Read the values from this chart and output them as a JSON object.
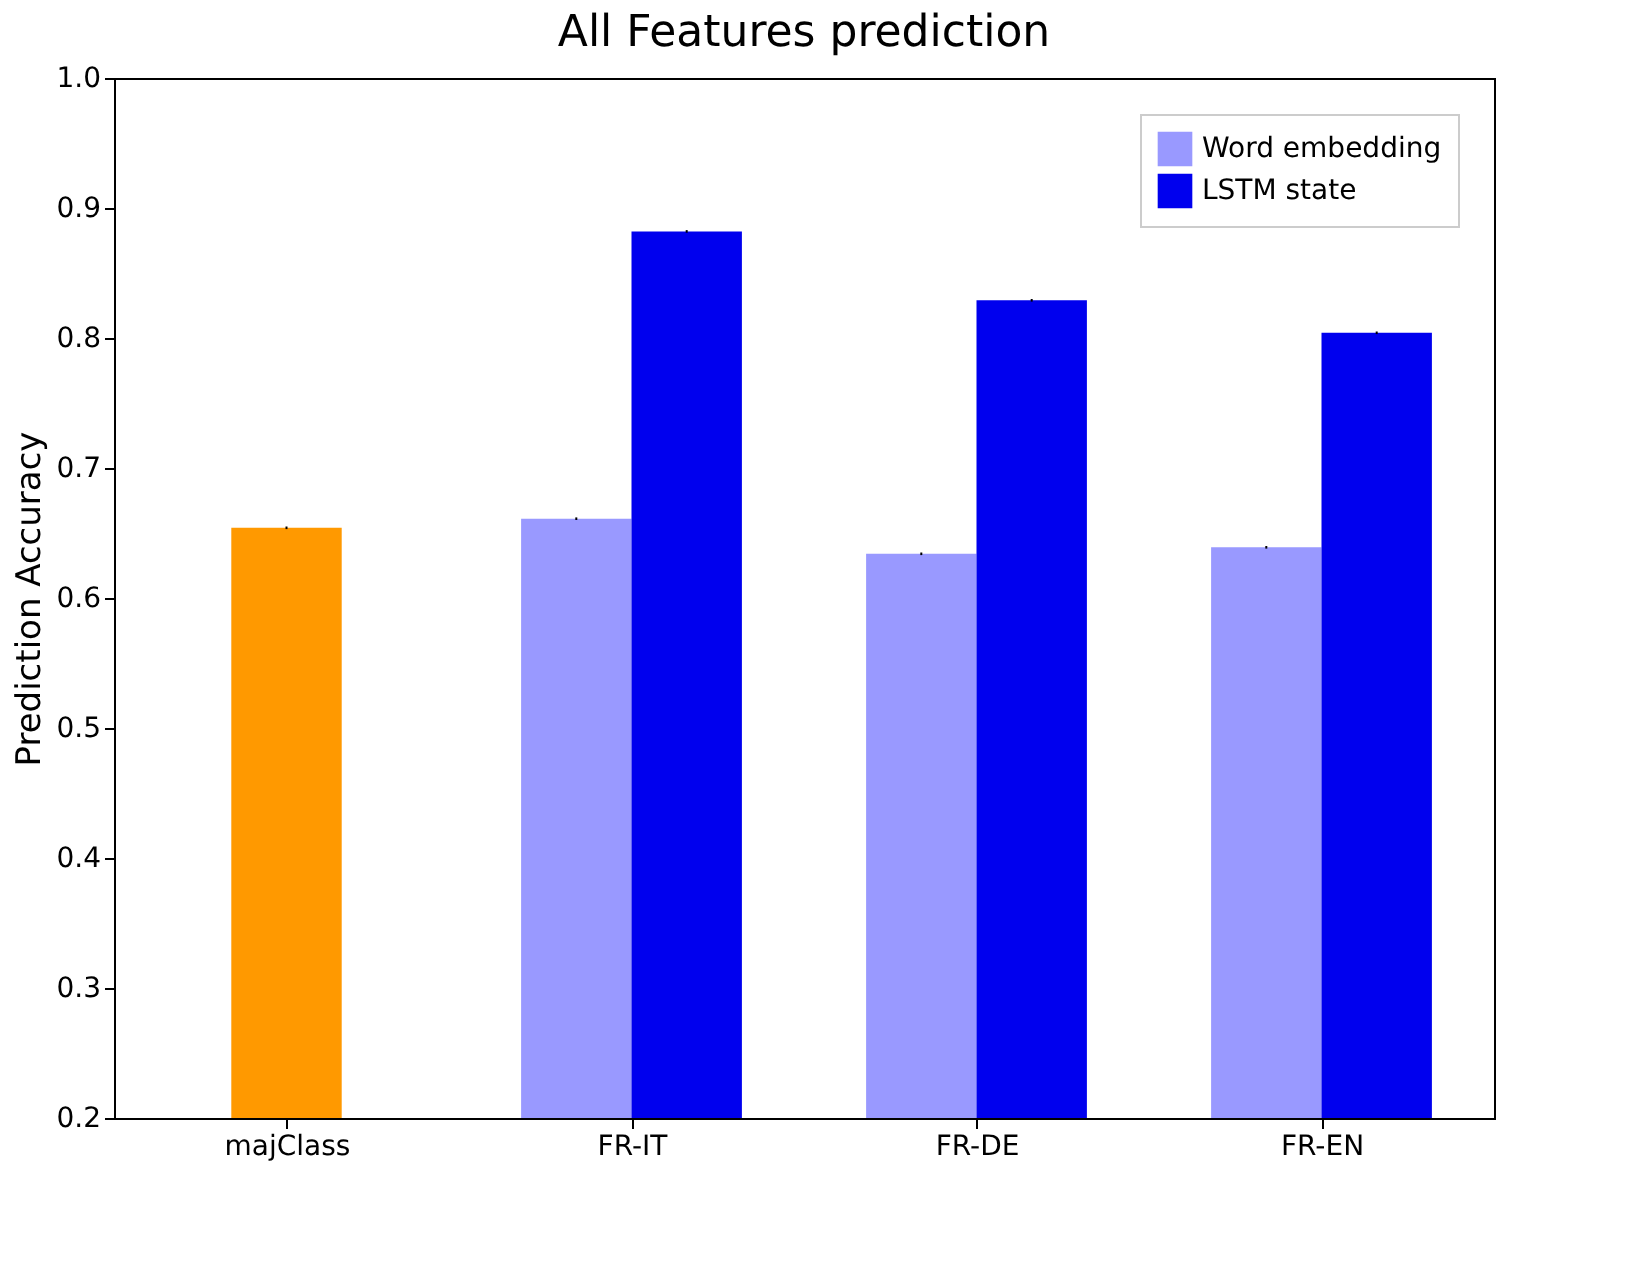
{
  "chart_data": {
    "type": "bar",
    "title": "All Features prediction",
    "ylabel": "Prediction Accuracy",
    "categories": [
      "majClass",
      "FR-IT",
      "FR-DE",
      "FR-EN"
    ],
    "series": [
      {
        "color": "#ff9900",
        "values": [
          0.654,
          null,
          null,
          null
        ],
        "errors": [
          0.001,
          null,
          null,
          null
        ]
      },
      {
        "name": "Word embedding",
        "color": "#9999ff",
        "values": [
          null,
          0.661,
          0.634,
          0.639
        ],
        "errors": [
          null,
          0.001,
          0.001,
          0.001
        ]
      },
      {
        "name": "LSTM state",
        "color": "#0000ee",
        "values": [
          null,
          0.882,
          0.829,
          0.804
        ],
        "errors": [
          null,
          0.001,
          0.001,
          0.001
        ]
      }
    ],
    "ylim": [
      0.2,
      1.0
    ],
    "yticks": [
      0.2,
      0.3,
      0.4,
      0.5,
      0.6,
      0.7,
      0.8,
      0.9,
      {
        "value": 1.0,
        "label": "1.0"
      }
    ],
    "legend": "top right",
    "grid": false
  }
}
